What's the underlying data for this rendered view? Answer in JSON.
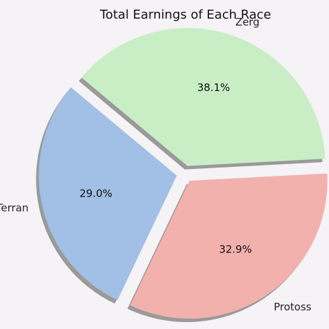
{
  "chart_data": {
    "type": "pie",
    "title": "Total Earnings of Each Race",
    "slices": [
      {
        "label": "Zerg",
        "value": 38.1,
        "pct_label": "38.1%",
        "color": "#c9eec6"
      },
      {
        "label": "Terran",
        "value": 29.0,
        "pct_label": "29.0%",
        "color": "#a2bfe5"
      },
      {
        "label": "Protoss",
        "value": 32.9,
        "pct_label": "32.9%",
        "color": "#f2b1ad"
      }
    ],
    "explode": true,
    "shadow": true
  }
}
